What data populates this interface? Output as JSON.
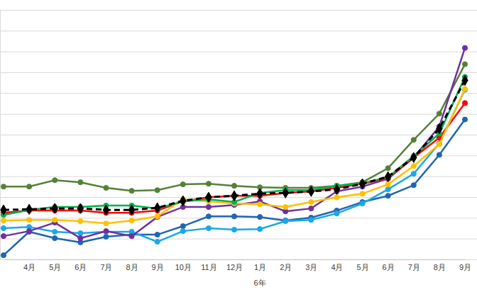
{
  "chart_data": {
    "type": "line",
    "categories": [
      null,
      "4月",
      "5月",
      "6月",
      "7月",
      "8月",
      "9月",
      "10月",
      "11月",
      "12月",
      "1月",
      "2月",
      "3月",
      "4月",
      "5月",
      "6月",
      "7月",
      "8月",
      "9月"
    ],
    "x_group_labels": [
      {
        "label": "6年",
        "at": 10
      }
    ],
    "ylim": [
      0,
      12
    ],
    "yticks": [
      0,
      1,
      2,
      3,
      4,
      5,
      6,
      7,
      8,
      9,
      10,
      11,
      12
    ],
    "grid": true,
    "tick_labels": "x",
    "series": [
      {
        "color": "#548235",
        "marker": "circle",
        "line_style": "solid",
        "values": [
          3.5,
          3.5,
          3.81,
          3.71,
          3.44,
          3.3,
          3.33,
          3.61,
          3.64,
          3.54,
          3.47,
          3.44,
          3.44,
          3.54,
          3.71,
          4.39,
          5.75,
          7.01,
          9.39
        ]
      },
      {
        "color": "#1f66b0",
        "marker": "circle",
        "line_style": "solid",
        "values": [
          0.2,
          1.33,
          1.02,
          0.82,
          1.09,
          1.19,
          1.19,
          1.6,
          2.07,
          2.07,
          2.04,
          1.87,
          2.01,
          2.35,
          2.76,
          3.06,
          3.57,
          5.03,
          6.73
        ]
      },
      {
        "color": "#1ba8e6",
        "marker": "circle",
        "line_style": "solid",
        "values": [
          1.5,
          1.56,
          1.33,
          1.26,
          1.33,
          1.33,
          0.85,
          1.36,
          1.5,
          1.43,
          1.46,
          1.84,
          1.9,
          2.21,
          2.69,
          3.37,
          4.12,
          5.58,
          8.16
        ]
      },
      {
        "color": "#7030a0",
        "marker": "circle",
        "line_style": "solid",
        "values": [
          1.12,
          1.36,
          1.77,
          1.02,
          1.36,
          1.12,
          2.04,
          2.52,
          2.52,
          2.62,
          2.79,
          2.31,
          2.45,
          3.27,
          3.5,
          3.88,
          4.9,
          6.39,
          10.17
        ]
      },
      {
        "color": "#ff0000",
        "marker": "circle",
        "line_style": "solid",
        "values": [
          2.24,
          2.35,
          2.35,
          2.35,
          2.24,
          2.24,
          2.35,
          2.79,
          2.99,
          3.06,
          3.06,
          3.2,
          3.27,
          3.44,
          3.64,
          3.91,
          4.9,
          5.85,
          7.52
        ]
      },
      {
        "color": "#ffc000",
        "marker": "circle",
        "line_style": "solid",
        "values": [
          1.87,
          1.9,
          1.9,
          1.84,
          1.73,
          1.87,
          2.07,
          2.89,
          2.79,
          2.69,
          2.65,
          2.52,
          2.76,
          2.99,
          3.16,
          3.61,
          4.49,
          5.54,
          8.2
        ]
      },
      {
        "color": "#00b050",
        "marker": "circle",
        "line_style": "solid",
        "values": [
          2.14,
          2.38,
          2.52,
          2.52,
          2.59,
          2.59,
          2.45,
          2.79,
          2.89,
          2.76,
          3.2,
          3.33,
          3.33,
          3.54,
          3.67,
          3.95,
          4.97,
          6.05,
          8.78
        ]
      },
      {
        "color": "#000000",
        "marker": "diamond",
        "line_style": "dashed",
        "values": [
          2.38,
          2.41,
          2.45,
          2.45,
          2.38,
          2.38,
          2.48,
          2.82,
          2.99,
          3.06,
          3.16,
          3.2,
          3.27,
          3.37,
          3.64,
          3.98,
          4.9,
          6.29,
          8.61
        ]
      }
    ]
  }
}
